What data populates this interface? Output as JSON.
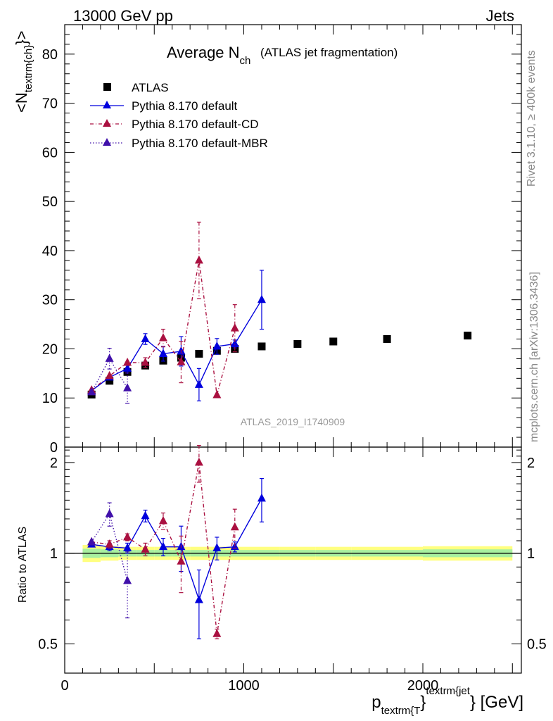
{
  "header": {
    "left": "13000 GeV pp",
    "right": "Jets"
  },
  "side": {
    "rivet": "Rivet 3.1.10, ≥ 400k events",
    "mcplots": "mcplots.cern.ch [arXiv:1306.3436]"
  },
  "chart_data": [
    {
      "type": "scatter",
      "title_main": "Average N",
      "title_sub": "ch",
      "title_paren": "(ATLAS jet fragmentation)",
      "ylabel": "<N_textrm{ch}>",
      "ylabel_parts": {
        "open": "<N",
        "sub": "textrm{ch}",
        "close": "}>"
      },
      "watermark": "ATLAS_2019_I1740909",
      "xlim": [
        0,
        2550
      ],
      "ylim": [
        0,
        86
      ],
      "yticks": [
        "0",
        "10",
        "20",
        "30",
        "40",
        "50",
        "60",
        "70",
        "80"
      ],
      "ytick_values": [
        0,
        10,
        20,
        30,
        40,
        50,
        60,
        70,
        80
      ],
      "legend_placement": "top-left",
      "legend": [
        {
          "key": "atlas",
          "label": "ATLAS"
        },
        {
          "key": "def",
          "label": "Pythia 8.170 default"
        },
        {
          "key": "cd",
          "label": "Pythia 8.170 default-CD"
        },
        {
          "key": "mbr",
          "label": "Pythia 8.170 default-MBR"
        }
      ],
      "series": [
        {
          "key": "atlas",
          "name": "ATLAS",
          "color": "#000000",
          "x": [
            150,
            250,
            350,
            450,
            550,
            650,
            750,
            850,
            950,
            1100,
            1300,
            1500,
            1800,
            2250
          ],
          "y": [
            10.7,
            13.5,
            15.3,
            16.6,
            17.6,
            18.2,
            19.0,
            19.6,
            20.0,
            20.5,
            21.0,
            21.5,
            22.0,
            22.7
          ],
          "yerr": [
            0.3,
            0.3,
            0.3,
            0.3,
            0.3,
            0.3,
            0.3,
            0.3,
            0.3,
            0.3,
            0.3,
            0.3,
            0.3,
            0.3
          ]
        },
        {
          "key": "def",
          "name": "Pythia 8.170 default",
          "color": "#0000dd",
          "x": [
            150,
            250,
            350,
            450,
            550,
            650,
            750,
            850,
            950,
            1100
          ],
          "y": [
            11.5,
            14.2,
            16.0,
            22.0,
            19.0,
            19.5,
            12.7,
            20.5,
            21.0,
            30.0
          ],
          "yerr": [
            0.4,
            0.6,
            0.9,
            1.1,
            1.5,
            3.0,
            3.3,
            1.6,
            0.8,
            6.0
          ]
        },
        {
          "key": "cd",
          "name": "Pythia 8.170 default-CD",
          "color": "#aa1040",
          "x": [
            150,
            250,
            350,
            450,
            550,
            650,
            750,
            850,
            950
          ],
          "y": [
            11.6,
            14.5,
            17.2,
            17.2,
            22.2,
            17.3,
            38.0,
            10.6,
            24.2
          ],
          "yerr": [
            0.4,
            0.6,
            0.6,
            1.0,
            1.8,
            4.2,
            7.8,
            0.4,
            4.8
          ]
        },
        {
          "key": "mbr",
          "name": "Pythia 8.170 default-MBR",
          "color": "#4010aa",
          "x": [
            150,
            250,
            350
          ],
          "y": [
            11.2,
            18.0,
            12.0
          ],
          "yerr": [
            0.4,
            2.1,
            3.1
          ]
        }
      ]
    },
    {
      "type": "scatter",
      "ylabel": "Ratio to ATLAS",
      "xlabel": "p_textrm{T}^textrm{jet} [GeV]",
      "xlabel_parts": {
        "p": "p",
        "sub": "textrm{T",
        "close": "}",
        "sup": "textrm{jet",
        "close2": "} [GeV]"
      },
      "xlim": [
        0,
        2550
      ],
      "ylim": [
        0.4,
        2.25
      ],
      "yticks": [
        "0.5",
        "1",
        "2"
      ],
      "ytick_values": [
        0.5,
        1,
        2
      ],
      "xticks": [
        "0",
        "1000",
        "2000"
      ],
      "xtick_values": [
        0,
        1000,
        2000
      ],
      "band": {
        "edges": [
          100,
          200,
          300,
          400,
          500,
          600,
          700,
          800,
          900,
          1000,
          1200,
          1400,
          1600,
          2000,
          2500
        ],
        "yellow": [
          0.065,
          0.055,
          0.05,
          0.05,
          0.05,
          0.05,
          0.05,
          0.05,
          0.05,
          0.05,
          0.05,
          0.05,
          0.05,
          0.055
        ],
        "green": [
          0.035,
          0.03,
          0.025,
          0.025,
          0.025,
          0.025,
          0.025,
          0.025,
          0.025,
          0.025,
          0.025,
          0.025,
          0.025,
          0.03
        ]
      },
      "series": [
        {
          "key": "def",
          "name": "Pythia 8.170 default",
          "color": "#0000dd",
          "x": [
            150,
            250,
            350,
            450,
            550,
            650,
            750,
            850,
            950,
            1100
          ],
          "y": [
            1.07,
            1.05,
            1.04,
            1.33,
            1.05,
            1.05,
            0.7,
            1.04,
            1.05,
            1.52
          ],
          "yerr": [
            0.02,
            0.03,
            0.04,
            0.06,
            0.07,
            0.18,
            0.18,
            0.09,
            0.04,
            0.25
          ]
        },
        {
          "key": "cd",
          "name": "Pythia 8.170 default-CD",
          "color": "#aa1040",
          "x": [
            150,
            250,
            350,
            450,
            550,
            650,
            750,
            850,
            950
          ],
          "y": [
            1.09,
            1.07,
            1.13,
            1.03,
            1.28,
            0.94,
            2.0,
            0.54,
            1.22
          ],
          "yerr": [
            0.02,
            0.03,
            0.03,
            0.05,
            0.08,
            0.2,
            0.28,
            0.02,
            0.18
          ]
        },
        {
          "key": "mbr",
          "name": "Pythia 8.170 default-MBR",
          "color": "#4010aa",
          "x": [
            150,
            250,
            350
          ],
          "y": [
            1.09,
            1.35,
            0.81
          ],
          "yerr": [
            0.02,
            0.12,
            0.2
          ]
        }
      ]
    }
  ]
}
